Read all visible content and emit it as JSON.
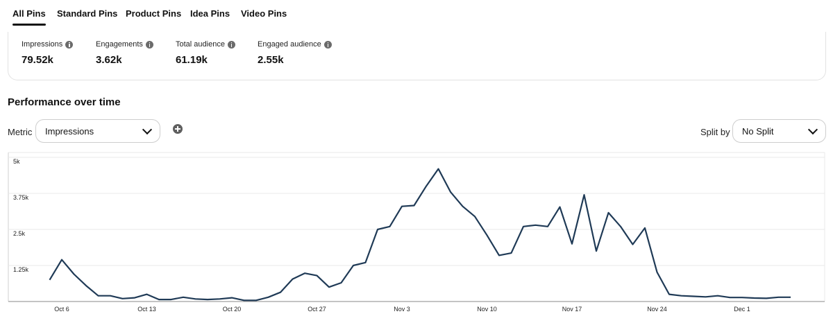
{
  "tabs": [
    {
      "label": "All Pins",
      "active": true
    },
    {
      "label": "Standard Pins",
      "active": false
    },
    {
      "label": "Product Pins",
      "active": false
    },
    {
      "label": "Idea Pins",
      "active": false
    },
    {
      "label": "Video Pins",
      "active": false
    }
  ],
  "metrics": [
    {
      "label": "Impressions",
      "value": "79.52k"
    },
    {
      "label": "Engagements",
      "value": "3.62k"
    },
    {
      "label": "Total audience",
      "value": "61.19k"
    },
    {
      "label": "Engaged audience",
      "value": "2.55k"
    }
  ],
  "performance": {
    "title": "Performance over time",
    "metric_label": "Metric",
    "metric_selected": "Impressions",
    "split_label": "Split by",
    "split_selected": "No Split"
  },
  "colors": {
    "line": "#1f3a56",
    "grid": "#e9e9e9",
    "axis": "#222222"
  },
  "icons": [
    "info-icon",
    "add-icon",
    "chevron-down-icon"
  ],
  "chart_data": {
    "type": "line",
    "ylim": [
      0,
      5000
    ],
    "yticks": [
      {
        "value": 1250,
        "label": "1.25k"
      },
      {
        "value": 2500,
        "label": "2.5k"
      },
      {
        "value": 3750,
        "label": "3.75k"
      },
      {
        "value": 5000,
        "label": "5k"
      }
    ],
    "xticks": [
      "Oct 6",
      "Oct 13",
      "Oct 20",
      "Oct 27",
      "Nov 3",
      "Nov 10",
      "Nov 17",
      "Nov 24",
      "Dec 1"
    ],
    "grid": true,
    "series": [
      {
        "values": [
          750,
          1450,
          950,
          550,
          200,
          200,
          100,
          130,
          250,
          70,
          70,
          150,
          90,
          70,
          90,
          130,
          40,
          40,
          150,
          320,
          780,
          980,
          900,
          500,
          650,
          1250,
          1350,
          2500,
          2600,
          3300,
          3330,
          4000,
          4600,
          3800,
          3300,
          2950,
          2300,
          1600,
          1680,
          2600,
          2650,
          2600,
          3280,
          2000,
          3700,
          1750,
          3080,
          2600,
          1980,
          2550,
          1020,
          250,
          200,
          180,
          160,
          200,
          140,
          140,
          120,
          110,
          150,
          150
        ]
      }
    ]
  }
}
